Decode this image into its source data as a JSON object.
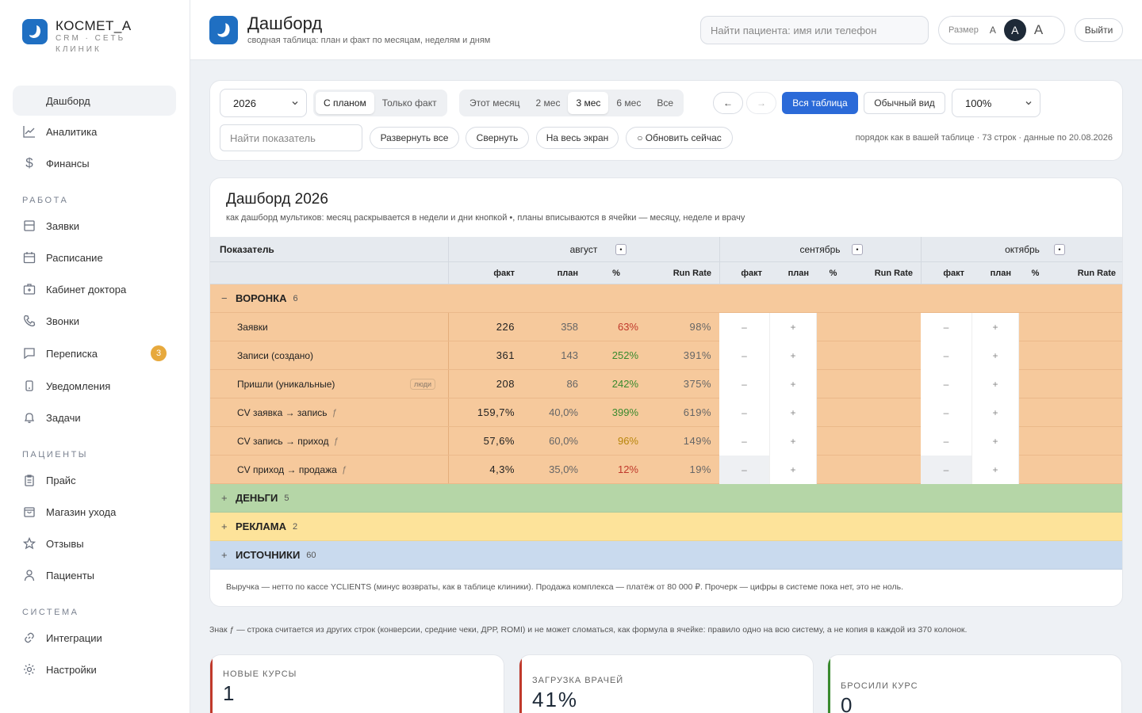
{
  "brand": {
    "title": "КОСМЕТ_А",
    "subtitle": "CRM · СЕТЬ КЛИНИК"
  },
  "sidebar": {
    "items": [
      {
        "label": "Дашборд",
        "icon": "dashboard-icon"
      },
      {
        "label": "Аналитика",
        "icon": "chart-icon"
      },
      {
        "label": "Финансы",
        "icon": "dollar-icon"
      }
    ],
    "sections": [
      "РАБОТА",
      "ПАЦИЕНТЫ",
      "СИСТЕМА"
    ],
    "work": [
      {
        "label": "Заявки",
        "icon": "inbox-icon"
      },
      {
        "label": "Расписание",
        "icon": "calendar-icon"
      },
      {
        "label": "Кабинет доктора",
        "icon": "medical-bag-icon"
      },
      {
        "label": "Звонки",
        "icon": "phone-icon"
      },
      {
        "label": "Переписка",
        "icon": "chat-icon",
        "badge": "3"
      },
      {
        "label": "Уведомления",
        "icon": "notification-icon"
      },
      {
        "label": "Задачи",
        "icon": "bell-icon"
      }
    ],
    "patients": [
      {
        "label": "Прайс",
        "icon": "clipboard-icon"
      },
      {
        "label": "Магазин ухода",
        "icon": "shop-icon"
      },
      {
        "label": "Отзывы",
        "icon": "star-icon"
      },
      {
        "label": "Пациенты",
        "icon": "user-icon"
      }
    ],
    "system": [
      {
        "label": "Интеграции",
        "icon": "link-icon"
      },
      {
        "label": "Настройки",
        "icon": "gear-icon"
      }
    ]
  },
  "header": {
    "title": "Дашборд",
    "subtitle": "сводная таблица: план и факт по месяцам, неделям и дням",
    "search_placeholder": "Найти пациента: имя или телефон",
    "size_label": "Размер",
    "size_options": [
      "A",
      "A",
      "A"
    ],
    "logout": "Выйти"
  },
  "toolbar": {
    "year": "2026",
    "mode": [
      "С планом",
      "Только факт"
    ],
    "periods": [
      "Этот месяц",
      "2 мес",
      "3 мес",
      "6 мес",
      "Все"
    ],
    "prev": "←",
    "next": "→",
    "full_table": "Вся таблица",
    "normal_view": "Обычный вид",
    "zoom": "100%",
    "find_placeholder": "Найти показатель",
    "expand_all": "Развернуть все",
    "collapse": "Свернуть",
    "fullscreen": "На весь экран",
    "refresh": "○ Обновить сейчас",
    "meta": "порядок как в вашей таблице · 73 строк · данные по 20.08.2026"
  },
  "dashboard": {
    "title": "Дашборд 2026",
    "subtitle": "как дашборд мультиков: месяц раскрывается в недели и дни кнопкой •, планы вписываются в ячейки — месяцу, неделе и врачу",
    "col_indicator": "Показатель",
    "months": [
      "август",
      "сентябрь",
      "октябрь"
    ],
    "month_btn": "•",
    "subcols": [
      "факт",
      "план",
      "%",
      "Run Rate"
    ],
    "groups": [
      {
        "name": "ВОРОНКА",
        "count": "6",
        "toggle": "−"
      },
      {
        "name": "ДЕНЬГИ",
        "count": "5",
        "toggle": "+"
      },
      {
        "name": "РЕКЛАМА",
        "count": "2",
        "toggle": "+"
      },
      {
        "name": "ИСТОЧНИКИ",
        "count": "60",
        "toggle": "+"
      }
    ],
    "rows": [
      {
        "name": "Заявки",
        "fact": "226",
        "plan": "358",
        "pct": "63%",
        "rr": "98%"
      },
      {
        "name": "Записи (создано)",
        "fact": "361",
        "plan": "143",
        "pct": "252%",
        "rr": "391%"
      },
      {
        "name": "Пришли (уникальные)",
        "tag": "люди",
        "fact": "208",
        "plan": "86",
        "pct": "242%",
        "rr": "375%"
      },
      {
        "name": "CV заявка → запись",
        "fx": "ƒ",
        "fact": "159,7%",
        "plan": "40,0%",
        "pct": "399%",
        "rr": "619%"
      },
      {
        "name": "CV запись → приход",
        "fx": "ƒ",
        "fact": "57,6%",
        "plan": "60,0%",
        "pct": "96%",
        "rr": "149%"
      },
      {
        "name": "CV приход → продажа",
        "fx": "ƒ",
        "fact": "4,3%",
        "plan": "35,0%",
        "pct": "12%",
        "rr": "19%"
      }
    ],
    "empty_fact": "–",
    "empty_plan": "+",
    "footnote": "Выручка — нетто по кассе YCLIENTS (минус возвраты, как в таблице клиники). Продажа комплекса — платёж от 80 000 ₽. Прочерк — цифры в системе пока нет, это не ноль."
  },
  "note": "Знак ƒ — строка считается из других строк (конверсии, средние чеки, ДРР, ROMI) и не может сломаться, как формула в ячейке: правило одно на всю систему, а не копия в каждой из 370 колонок.",
  "kpis": [
    {
      "label": "НОВЫЕ КУРСЫ",
      "value": "1"
    },
    {
      "label": "ЗАГРУЗКА ВРАЧЕЙ",
      "value": "41%"
    },
    {
      "label": "БРОСИЛИ КУРС",
      "value": "0"
    }
  ],
  "colors": {
    "accent": "#2b6ad8",
    "brand": "#1f6fc2",
    "funnel": "#f6c99c",
    "money": "#b5d6a7",
    "ads": "#fde39a",
    "sources": "#c9daee"
  }
}
